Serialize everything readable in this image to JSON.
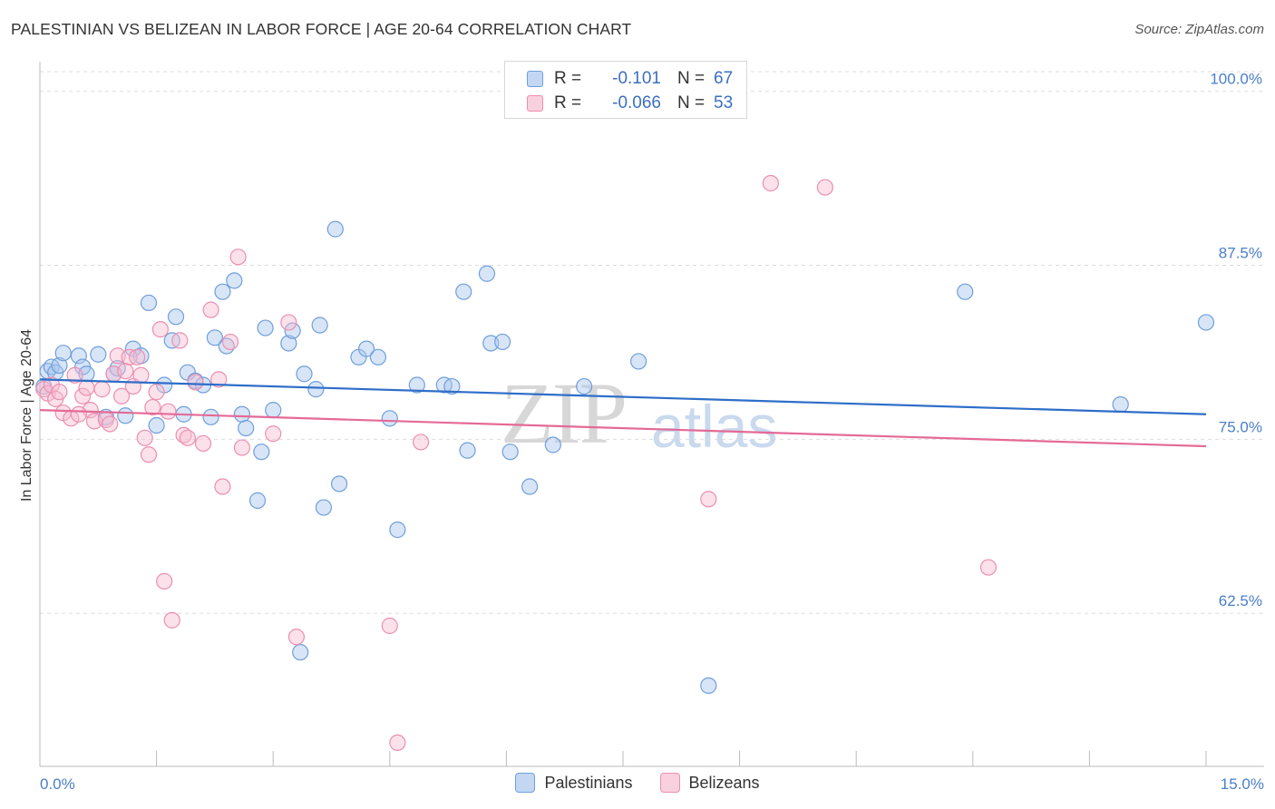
{
  "title": "PALESTINIAN VS BELIZEAN IN LABOR FORCE | AGE 20-64 CORRELATION CHART",
  "source": "Source: ZipAtlas.com",
  "watermark": {
    "zip": "ZIP",
    "atlas": "atlas"
  },
  "legend": {
    "rows": [
      {
        "r_label": "R =",
        "r_value": "-0.101",
        "n_label": "N =",
        "n_value": "67"
      },
      {
        "r_label": "R =",
        "r_value": "-0.066",
        "n_label": "N =",
        "n_value": "53"
      }
    ]
  },
  "bottom_legend": [
    "Palestinians",
    "Belizeans"
  ],
  "colors": {
    "blue_fill": "#a9c6ee",
    "blue_stroke": "#6f9fdc",
    "blue_line": "#2e6ec8",
    "pink_fill": "#f6bcd0",
    "pink_stroke": "#ec8fb0",
    "pink_line": "#e46a96",
    "grid": "#dddddd",
    "axis_text": "#4a7fc8"
  },
  "chart_data": {
    "type": "scatter",
    "title": "PALESTINIAN VS BELIZEAN IN LABOR FORCE | AGE 20-64 CORRELATION CHART",
    "xlabel": "",
    "ylabel": "In Labor Force | Age 20-64",
    "xlim": [
      0.0,
      15.0
    ],
    "ylim": [
      51.5,
      102.0
    ],
    "x_tick_labels": [
      {
        "value": 0.0,
        "label": "0.0%"
      },
      {
        "value": 15.0,
        "label": "15.0%"
      }
    ],
    "y_tick_labels": [
      {
        "value": 100.0,
        "label": "100.0%"
      },
      {
        "value": 87.5,
        "label": "87.5%"
      },
      {
        "value": 75.0,
        "label": "75.0%"
      },
      {
        "value": 62.5,
        "label": "62.5%"
      }
    ],
    "grid": true,
    "series": [
      {
        "name": "Palestinians",
        "color": "#a9c6ee",
        "trend": {
          "x": [
            0.0,
            15.0
          ],
          "y": [
            79.3,
            76.8
          ]
        },
        "points": [
          [
            0.1,
            79.9
          ],
          [
            0.15,
            80.2
          ],
          [
            0.2,
            79.8
          ],
          [
            0.25,
            80.3
          ],
          [
            0.3,
            81.2
          ],
          [
            0.5,
            81.0
          ],
          [
            0.55,
            80.2
          ],
          [
            0.6,
            79.7
          ],
          [
            0.75,
            81.1
          ],
          [
            0.85,
            76.6
          ],
          [
            0.95,
            79.7
          ],
          [
            1.0,
            80.1
          ],
          [
            1.1,
            76.7
          ],
          [
            1.2,
            81.5
          ],
          [
            1.3,
            81.0
          ],
          [
            1.4,
            84.8
          ],
          [
            1.5,
            76.0
          ],
          [
            1.6,
            78.9
          ],
          [
            1.7,
            82.1
          ],
          [
            1.75,
            83.8
          ],
          [
            1.85,
            76.8
          ],
          [
            1.9,
            79.8
          ],
          [
            2.0,
            79.2
          ],
          [
            2.1,
            78.9
          ],
          [
            2.2,
            76.6
          ],
          [
            2.25,
            82.3
          ],
          [
            2.35,
            85.6
          ],
          [
            2.4,
            81.7
          ],
          [
            2.5,
            86.4
          ],
          [
            2.6,
            76.8
          ],
          [
            2.65,
            75.8
          ],
          [
            2.8,
            70.6
          ],
          [
            2.85,
            74.1
          ],
          [
            2.9,
            83.0
          ],
          [
            3.0,
            77.1
          ],
          [
            3.2,
            81.9
          ],
          [
            3.25,
            82.8
          ],
          [
            3.4,
            79.7
          ],
          [
            3.55,
            78.6
          ],
          [
            3.6,
            83.2
          ],
          [
            3.65,
            70.1
          ],
          [
            3.8,
            90.1
          ],
          [
            3.85,
            71.8
          ],
          [
            4.1,
            80.9
          ],
          [
            4.2,
            81.5
          ],
          [
            4.35,
            80.9
          ],
          [
            4.5,
            76.5
          ],
          [
            4.6,
            68.5
          ],
          [
            4.85,
            78.9
          ],
          [
            5.2,
            78.9
          ],
          [
            5.3,
            78.8
          ],
          [
            5.45,
            85.6
          ],
          [
            5.5,
            74.2
          ],
          [
            5.75,
            86.9
          ],
          [
            5.8,
            81.9
          ],
          [
            5.95,
            82.0
          ],
          [
            6.05,
            74.1
          ],
          [
            6.3,
            71.6
          ],
          [
            6.6,
            74.6
          ],
          [
            7.0,
            78.8
          ],
          [
            7.7,
            80.6
          ],
          [
            8.6,
            57.3
          ],
          [
            11.9,
            85.6
          ],
          [
            13.9,
            77.5
          ],
          [
            15.0,
            83.4
          ],
          [
            3.35,
            59.7
          ],
          [
            0.05,
            78.8
          ]
        ]
      },
      {
        "name": "Belizeans",
        "color": "#f6bcd0",
        "trend": {
          "x": [
            0.0,
            15.0
          ],
          "y": [
            77.1,
            74.5
          ]
        },
        "points": [
          [
            0.05,
            78.6
          ],
          [
            0.1,
            78.3
          ],
          [
            0.15,
            78.9
          ],
          [
            0.2,
            77.9
          ],
          [
            0.25,
            78.4
          ],
          [
            0.3,
            76.9
          ],
          [
            0.4,
            76.5
          ],
          [
            0.45,
            79.6
          ],
          [
            0.55,
            78.1
          ],
          [
            0.6,
            78.7
          ],
          [
            0.65,
            77.1
          ],
          [
            0.7,
            76.3
          ],
          [
            0.8,
            78.6
          ],
          [
            0.85,
            76.4
          ],
          [
            0.9,
            76.1
          ],
          [
            0.95,
            79.7
          ],
          [
            1.0,
            81.0
          ],
          [
            1.05,
            78.1
          ],
          [
            1.1,
            79.9
          ],
          [
            1.15,
            80.9
          ],
          [
            1.2,
            78.8
          ],
          [
            1.3,
            79.6
          ],
          [
            1.35,
            75.1
          ],
          [
            1.4,
            73.9
          ],
          [
            1.45,
            77.3
          ],
          [
            1.5,
            78.4
          ],
          [
            1.55,
            82.9
          ],
          [
            1.6,
            64.8
          ],
          [
            1.65,
            77.0
          ],
          [
            1.7,
            62.0
          ],
          [
            1.8,
            82.1
          ],
          [
            1.85,
            75.3
          ],
          [
            1.9,
            75.1
          ],
          [
            2.0,
            79.1
          ],
          [
            2.1,
            74.7
          ],
          [
            2.2,
            84.3
          ],
          [
            2.35,
            71.6
          ],
          [
            2.45,
            82.0
          ],
          [
            2.55,
            88.1
          ],
          [
            2.6,
            74.4
          ],
          [
            3.0,
            75.4
          ],
          [
            3.2,
            83.4
          ],
          [
            3.3,
            60.8
          ],
          [
            4.5,
            61.6
          ],
          [
            4.6,
            53.2
          ],
          [
            4.9,
            74.8
          ],
          [
            8.6,
            70.7
          ],
          [
            9.4,
            93.4
          ],
          [
            10.1,
            93.1
          ],
          [
            12.2,
            65.8
          ],
          [
            0.5,
            76.8
          ],
          [
            1.25,
            80.9
          ],
          [
            2.3,
            79.3
          ]
        ]
      }
    ]
  }
}
